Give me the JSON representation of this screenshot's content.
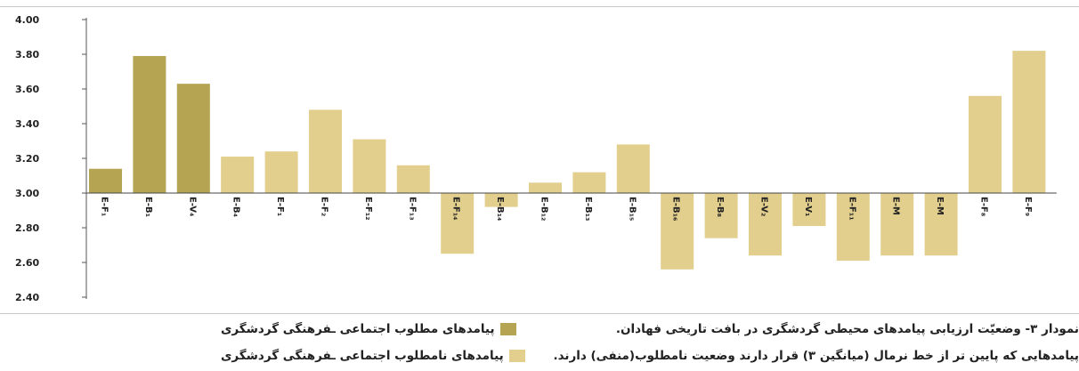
{
  "chart_data": {
    "type": "bar",
    "title": "",
    "xlabel": "",
    "ylabel": "",
    "baseline": 3.0,
    "ylim": [
      2.4,
      4.0
    ],
    "yticks": [
      "4.00",
      "3.80",
      "3.60",
      "3.40",
      "3.20",
      "3.00",
      "2.80",
      "2.60",
      "2.40"
    ],
    "grid": false,
    "colors": {
      "desired": "#b5a553",
      "undesired": "#e2cf8e"
    },
    "categories": [
      "E-F₁",
      "E-B₁",
      "E-V₄",
      "E-B₄",
      "E-F₁",
      "E-F₂",
      "E-F₁₂",
      "E-F₁₃",
      "E-F₁₄",
      "E-B₁₄",
      "E-B₁₂",
      "E-B₁₃",
      "E-B₁₅",
      "E-B₁₆",
      "E-B₈",
      "E-V₂",
      "E-V₁",
      "E-F₁₁",
      "E-M",
      "E-M",
      "E-F₈",
      "E-F₉"
    ],
    "values": [
      3.14,
      3.79,
      3.63,
      3.21,
      3.24,
      3.48,
      3.31,
      3.16,
      2.65,
      2.92,
      3.06,
      3.12,
      3.28,
      2.56,
      2.74,
      2.64,
      2.81,
      2.61,
      2.64,
      2.64,
      3.56,
      3.82
    ],
    "series_index": [
      0,
      0,
      0,
      1,
      1,
      1,
      1,
      1,
      1,
      1,
      1,
      1,
      1,
      1,
      1,
      1,
      1,
      1,
      1,
      1,
      1,
      1
    ],
    "legend": [
      "پیامدهای مطلوب اجتماعی ـفرهنگی گردشگری",
      "پیامدهای نامطلوب اجتماعی ـفرهنگی گردشگری"
    ]
  },
  "caption": {
    "line1": "نمودار ۳- وضعیّت ارزیابی پیامدهای محیطی گردشگری در بافت تاریخی فهادان.",
    "line2": "پیامدهایی که پایین تر از خط نرمال (میانگین ۳) قرار دارند وضعیت نامطلوب(منفی) دارند."
  }
}
